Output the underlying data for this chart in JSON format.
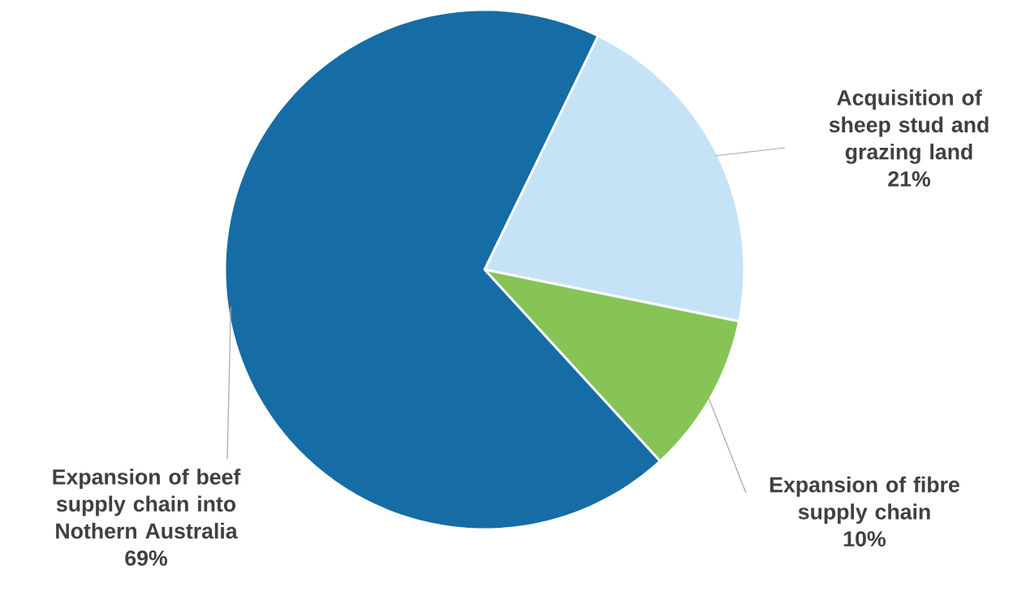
{
  "chart_data": {
    "type": "pie",
    "categories": [
      "Acquisition of sheep stud and grazing land",
      "Expansion of fibre supply chain",
      "Expansion of beef supply chain into Nothern Australia"
    ],
    "values": [
      21,
      10,
      69
    ],
    "colors": [
      "#c5e3f6",
      "#86c455",
      "#166ca5"
    ],
    "value_labels": [
      "21%",
      "10%",
      "69%"
    ]
  }
}
